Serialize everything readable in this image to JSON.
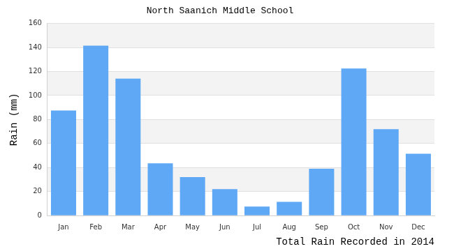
{
  "chart_data": {
    "type": "bar",
    "title": "North Saanich Middle School",
    "y_label": "Rain (mm)",
    "x_label": "Total Rain Recorded in 2014",
    "categories": [
      "Jan",
      "Feb",
      "Mar",
      "Apr",
      "May",
      "Jun",
      "Jul",
      "Aug",
      "Sep",
      "Oct",
      "Nov",
      "Dec"
    ],
    "values": [
      87.5,
      141.5,
      114,
      43.5,
      32,
      22,
      7.5,
      11.5,
      39,
      122.5,
      72,
      51.5
    ],
    "color": "#5fa8f5",
    "ylim": [
      0,
      160
    ],
    "yticks": [
      0,
      20,
      40,
      60,
      80,
      100,
      120,
      140,
      160
    ],
    "grid": true
  }
}
